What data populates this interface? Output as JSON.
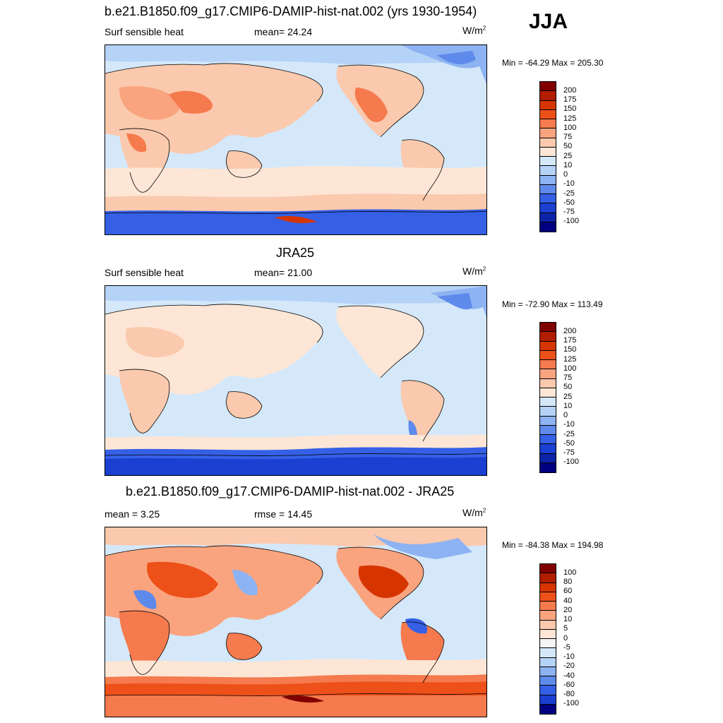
{
  "season": "JJA",
  "units_base": "W/m",
  "units_sup": "2",
  "panels": [
    {
      "title": "b.e21.B1850.f09_g17.CMIP6-DAMIP-hist-nat.002 (yrs 1930-1954)",
      "left": "Surf sensible heat",
      "center": "mean=  24.24",
      "minmax": "Min = -64.29 Max = 205.30",
      "colorbar": {
        "labels": [
          "200",
          "175",
          "150",
          "125",
          "100",
          "75",
          "50",
          "25",
          "10",
          "0",
          "-10",
          "-25",
          "-50",
          "-75",
          "-100"
        ],
        "colors": [
          "#800000",
          "#b21d00",
          "#d63500",
          "#ee5019",
          "#f57a4d",
          "#f9a47f",
          "#fbc9ad",
          "#fde6d6",
          "#d4e8fa",
          "#b5d2f7",
          "#8db3f2",
          "#5e8aeb",
          "#3560e6",
          "#1a3fd1",
          "#0d24a8",
          "#000080"
        ]
      }
    },
    {
      "title": "JRA25",
      "left": "Surf sensible heat",
      "center": "mean=  21.00",
      "minmax": "Min = -72.90 Max = 113.49",
      "colorbar": {
        "labels": [
          "200",
          "175",
          "150",
          "125",
          "100",
          "75",
          "50",
          "25",
          "10",
          "0",
          "-10",
          "-25",
          "-50",
          "-75",
          "-100"
        ],
        "colors": [
          "#800000",
          "#b21d00",
          "#d63500",
          "#ee5019",
          "#f57a4d",
          "#f9a47f",
          "#fbc9ad",
          "#fde6d6",
          "#d4e8fa",
          "#b5d2f7",
          "#8db3f2",
          "#5e8aeb",
          "#3560e6",
          "#1a3fd1",
          "#0d24a8",
          "#000080"
        ]
      }
    },
    {
      "title": "b.e21.B1850.f09_g17.CMIP6-DAMIP-hist-nat.002 - JRA25",
      "left": "mean =   3.25",
      "center": "rmse =  14.45",
      "minmax": "Min = -84.38 Max = 194.98",
      "colorbar": {
        "labels": [
          "100",
          "80",
          "60",
          "40",
          "20",
          "10",
          "5",
          "0",
          "-5",
          "-10",
          "-20",
          "-40",
          "-60",
          "-80",
          "-100"
        ],
        "colors": [
          "#800000",
          "#b21d00",
          "#d63500",
          "#ee5019",
          "#f57a4d",
          "#f9a47f",
          "#fbc9ad",
          "#fde6d6",
          "#f5f5f5",
          "#d4e8fa",
          "#b5d2f7",
          "#8db3f2",
          "#5e8aeb",
          "#3560e6",
          "#1a3fd1",
          "#000080"
        ]
      }
    }
  ]
}
